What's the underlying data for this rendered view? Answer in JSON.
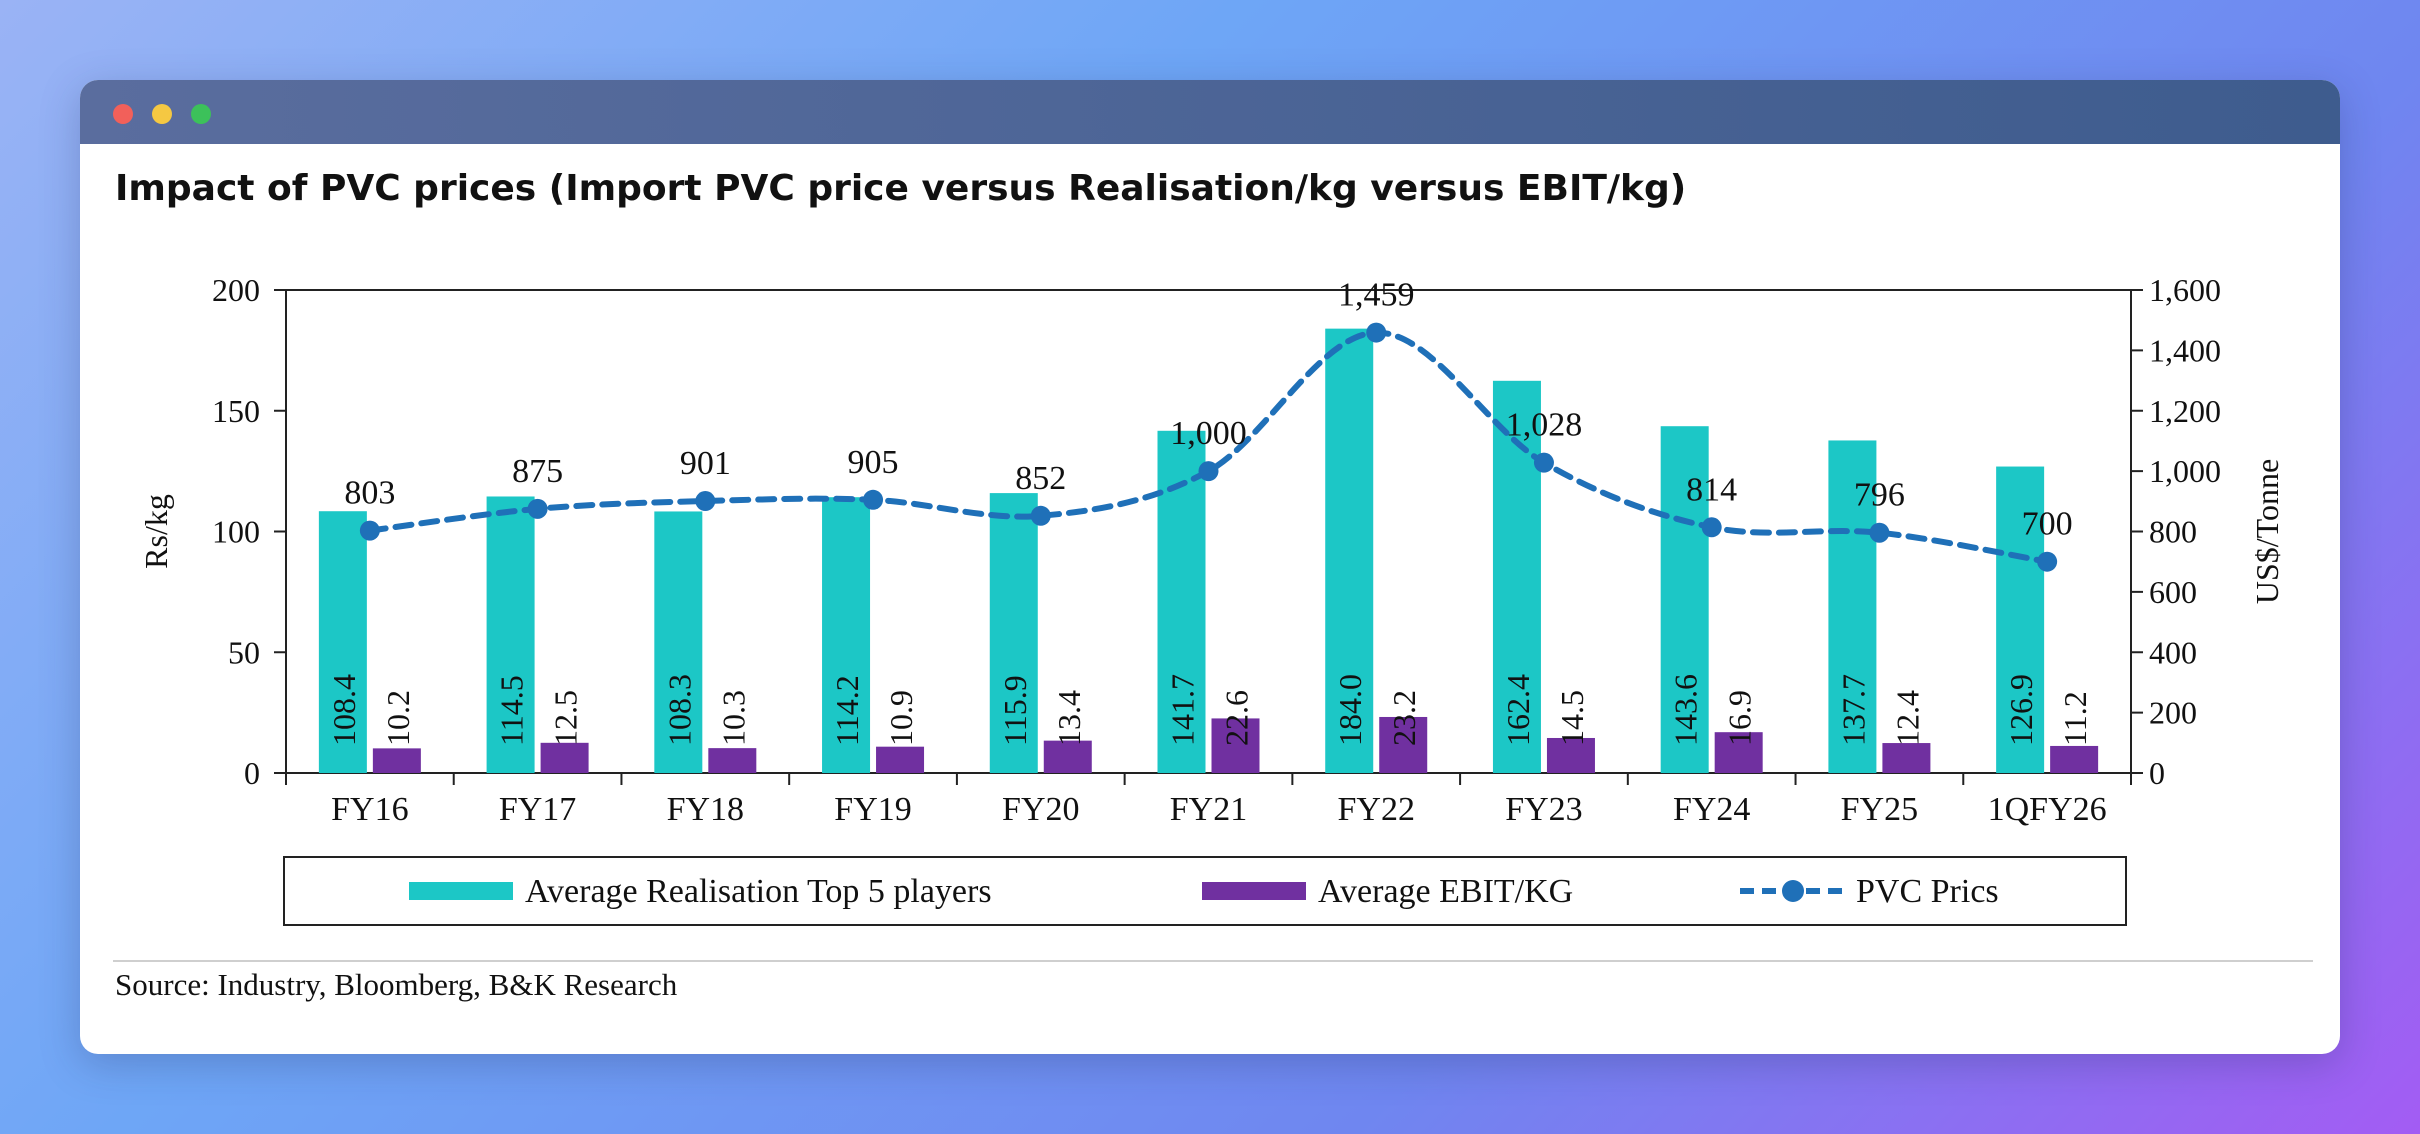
{
  "window": {
    "title": "Impact of PVC prices (Import PVC price versus Realisation/kg versus EBIT/kg)",
    "source": "Source: Industry, Bloomberg, B&K Research"
  },
  "colors": {
    "realisation": "#1cc7c6",
    "ebit": "#7030a0",
    "pvc": "#1f70b8"
  },
  "chart_data": {
    "type": "bar",
    "title": "Impact of PVC prices (Import PVC price versus Realisation/kg versus EBIT/kg)",
    "categories": [
      "FY16",
      "FY17",
      "FY18",
      "FY19",
      "FY20",
      "FY21",
      "FY22",
      "FY23",
      "FY24",
      "FY25",
      "1QFY26"
    ],
    "ylabel": "Rs/kg",
    "y2label": "US$/Tonne",
    "ylim": [
      0,
      200
    ],
    "y2lim": [
      0,
      1600
    ],
    "yticks": [
      "0",
      "50",
      "100",
      "150",
      "200"
    ],
    "y2ticks": [
      "0",
      "200",
      "400",
      "600",
      "800",
      "1,000",
      "1,200",
      "1,400",
      "1,600"
    ],
    "legend_position": "bottom",
    "series": [
      {
        "name": "Average Realisation Top 5 players",
        "type": "bar",
        "axis": "left",
        "values": [
          108.4,
          114.5,
          108.3,
          114.2,
          115.9,
          141.7,
          184.0,
          162.4,
          143.6,
          137.7,
          126.9
        ],
        "labels": [
          "108.4",
          "114.5",
          "108.3",
          "114.2",
          "115.9",
          "141.7",
          "184.0",
          "162.4",
          "143.6",
          "137.7",
          "126.9"
        ]
      },
      {
        "name": "Average EBIT/KG",
        "type": "bar",
        "axis": "left",
        "values": [
          10.2,
          12.5,
          10.3,
          10.9,
          13.4,
          22.6,
          23.2,
          14.5,
          16.9,
          12.4,
          11.2
        ],
        "labels": [
          "10.2",
          "12.5",
          "10.3",
          "10.9",
          "13.4",
          "22.6",
          "23.2",
          "14.5",
          "16.9",
          "12.4",
          "11.2"
        ]
      },
      {
        "name": "PVC Prics",
        "type": "line",
        "axis": "right",
        "values": [
          803,
          875,
          901,
          905,
          852,
          1000,
          1459,
          1028,
          814,
          796,
          700
        ],
        "labels": [
          "803",
          "875",
          "901",
          "905",
          "852",
          "1,000",
          "1,459",
          "1,028",
          "814",
          "796",
          "700"
        ]
      }
    ]
  }
}
